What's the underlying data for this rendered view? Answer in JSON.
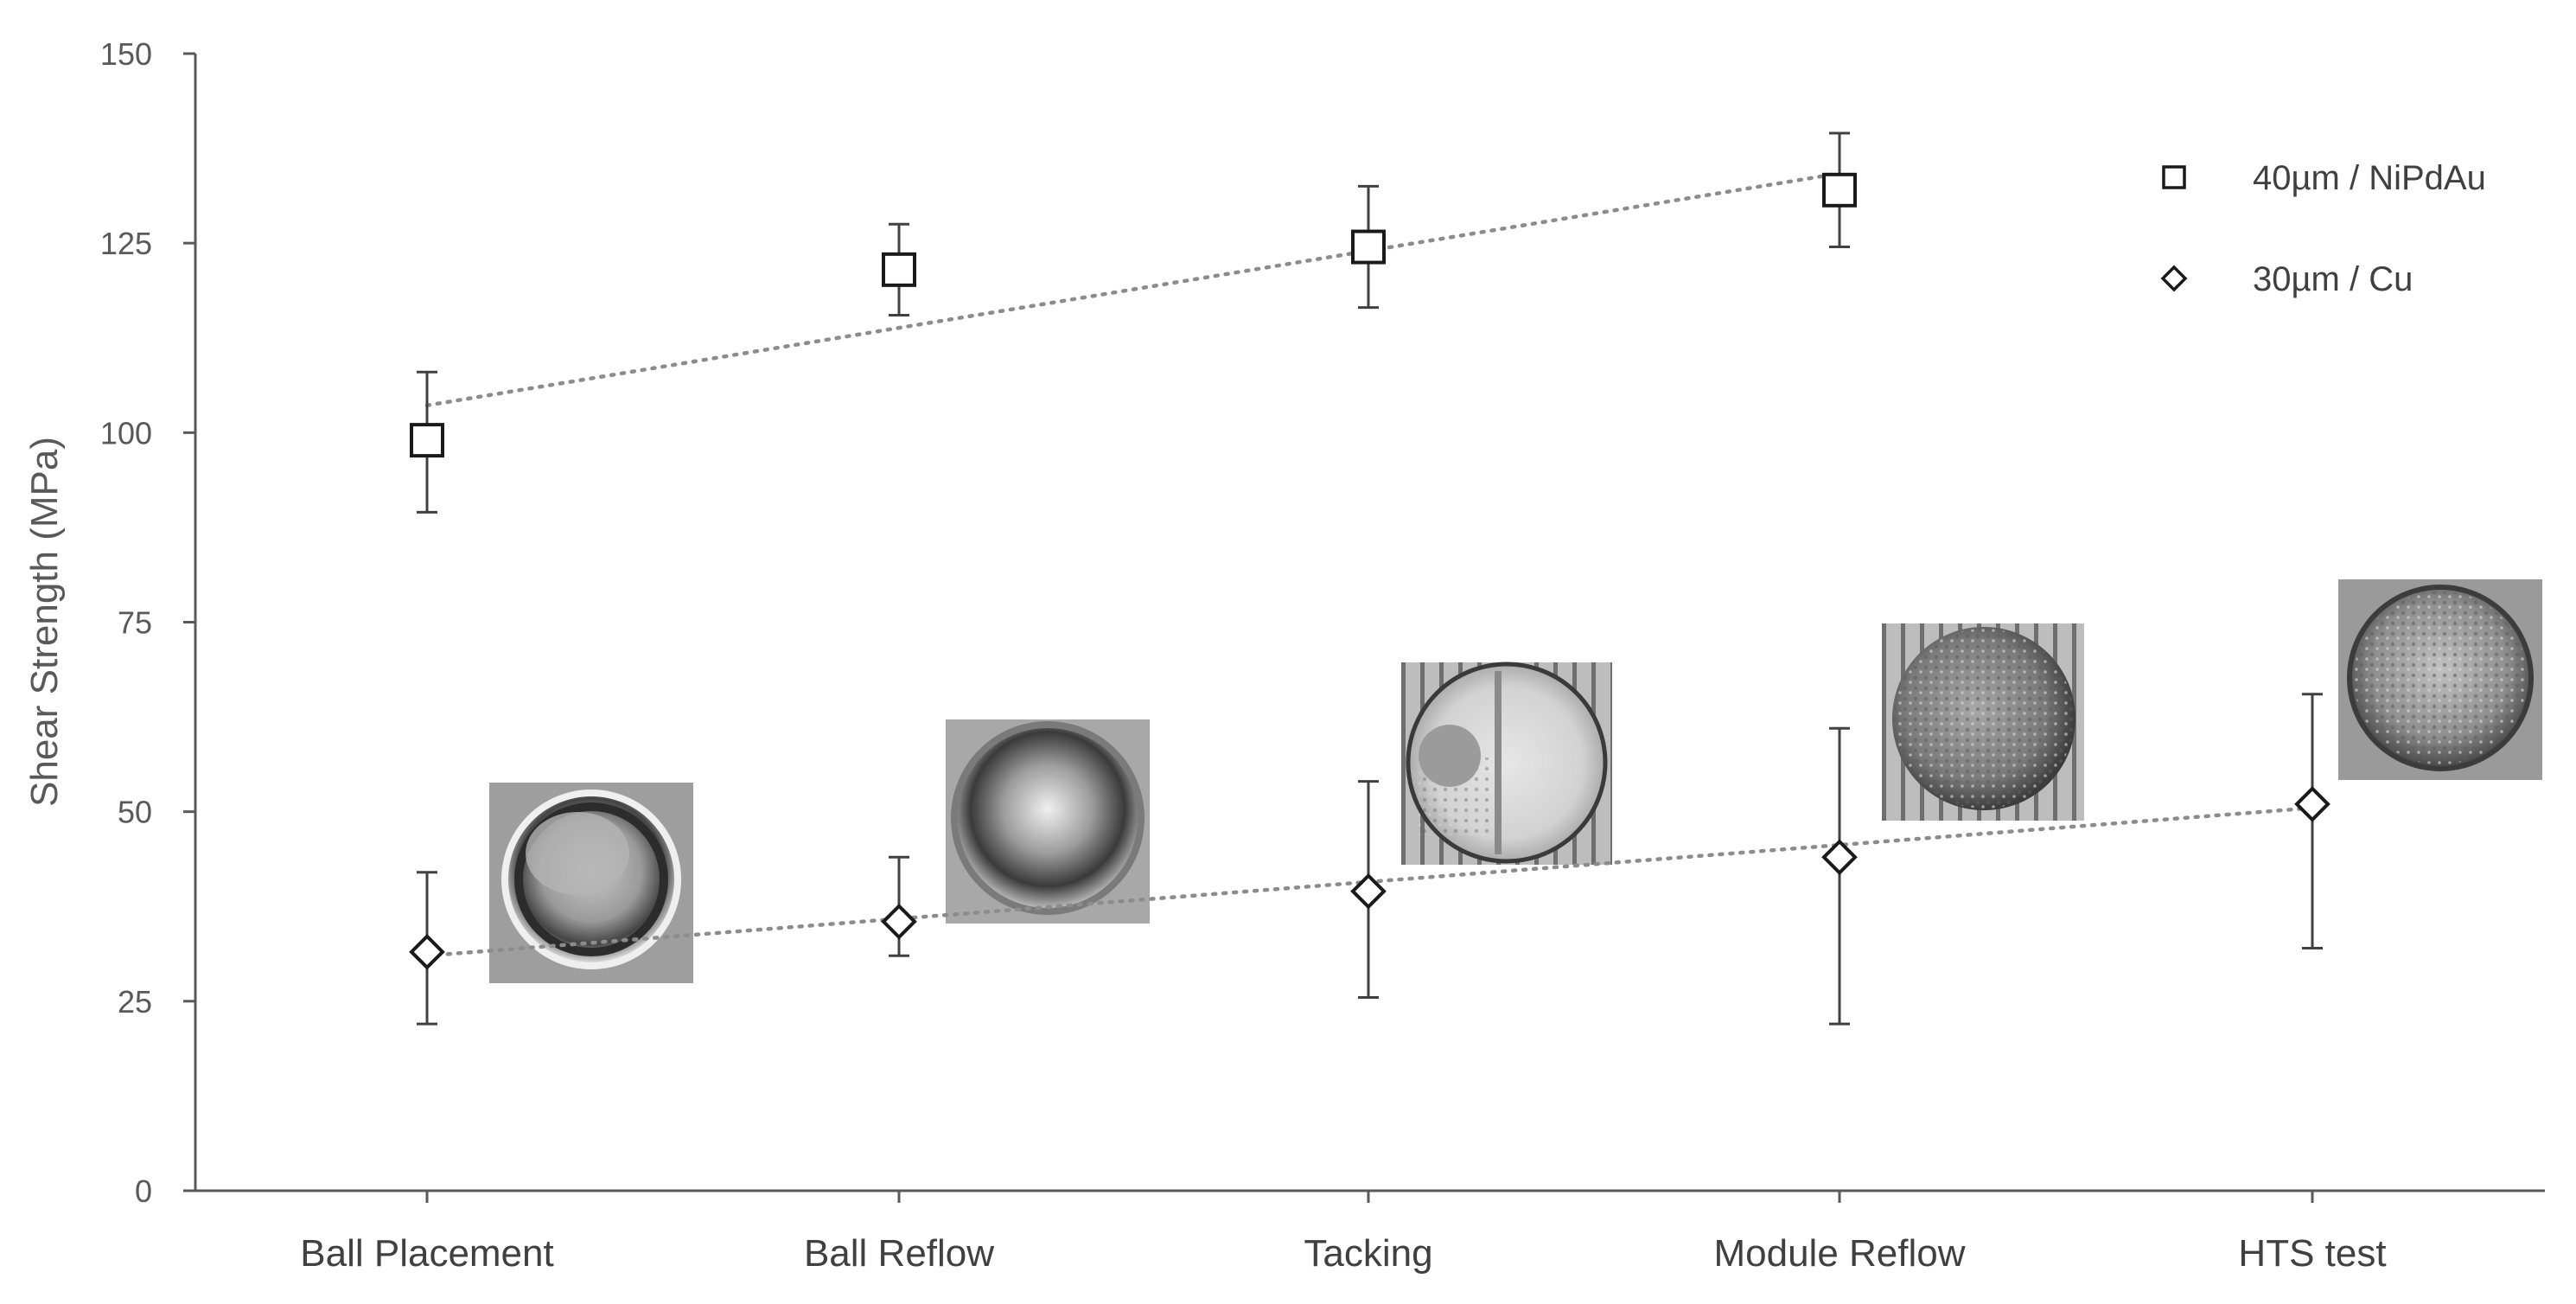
{
  "chart_data": {
    "type": "scatter",
    "title": "",
    "xlabel": "",
    "ylabel": "Shear Strength (MPa)",
    "categories": [
      "Ball Placement",
      "Ball Reflow",
      "Tacking",
      "Module Reflow",
      "HTS test"
    ],
    "ylim": [
      0,
      150
    ],
    "yticks": [
      0,
      25,
      50,
      75,
      100,
      125,
      150
    ],
    "grid": false,
    "legend_position": "top-right",
    "series": [
      {
        "name": "40µm / NiPdAu",
        "marker": "square",
        "values": [
          99,
          121.5,
          124.5,
          132,
          null
        ],
        "err_low": [
          89.5,
          115.5,
          116.5,
          124.5,
          null
        ],
        "err_high": [
          108,
          127.5,
          132.5,
          139.5,
          null
        ],
        "trendline": [
          103.6,
          134.2
        ]
      },
      {
        "name": "30µm / Cu",
        "marker": "diamond",
        "values": [
          31.5,
          35.5,
          39.5,
          44,
          51
        ],
        "err_low": [
          22,
          31,
          25.5,
          22,
          32
        ],
        "err_high": [
          42,
          44,
          54,
          61,
          65.5
        ],
        "trendline": [
          31.0,
          50.5
        ]
      }
    ],
    "inset_images": [
      {
        "name": "ball-placement-micrograph"
      },
      {
        "name": "ball-reflow-micrograph"
      },
      {
        "name": "tacking-micrograph"
      },
      {
        "name": "module-reflow-micrograph"
      },
      {
        "name": "hts-test-micrograph"
      }
    ],
    "colors": {
      "axis": "#595959",
      "marker": "#1a1a1a",
      "errorbar": "#404040",
      "trendline": "#8c8c8c"
    }
  }
}
